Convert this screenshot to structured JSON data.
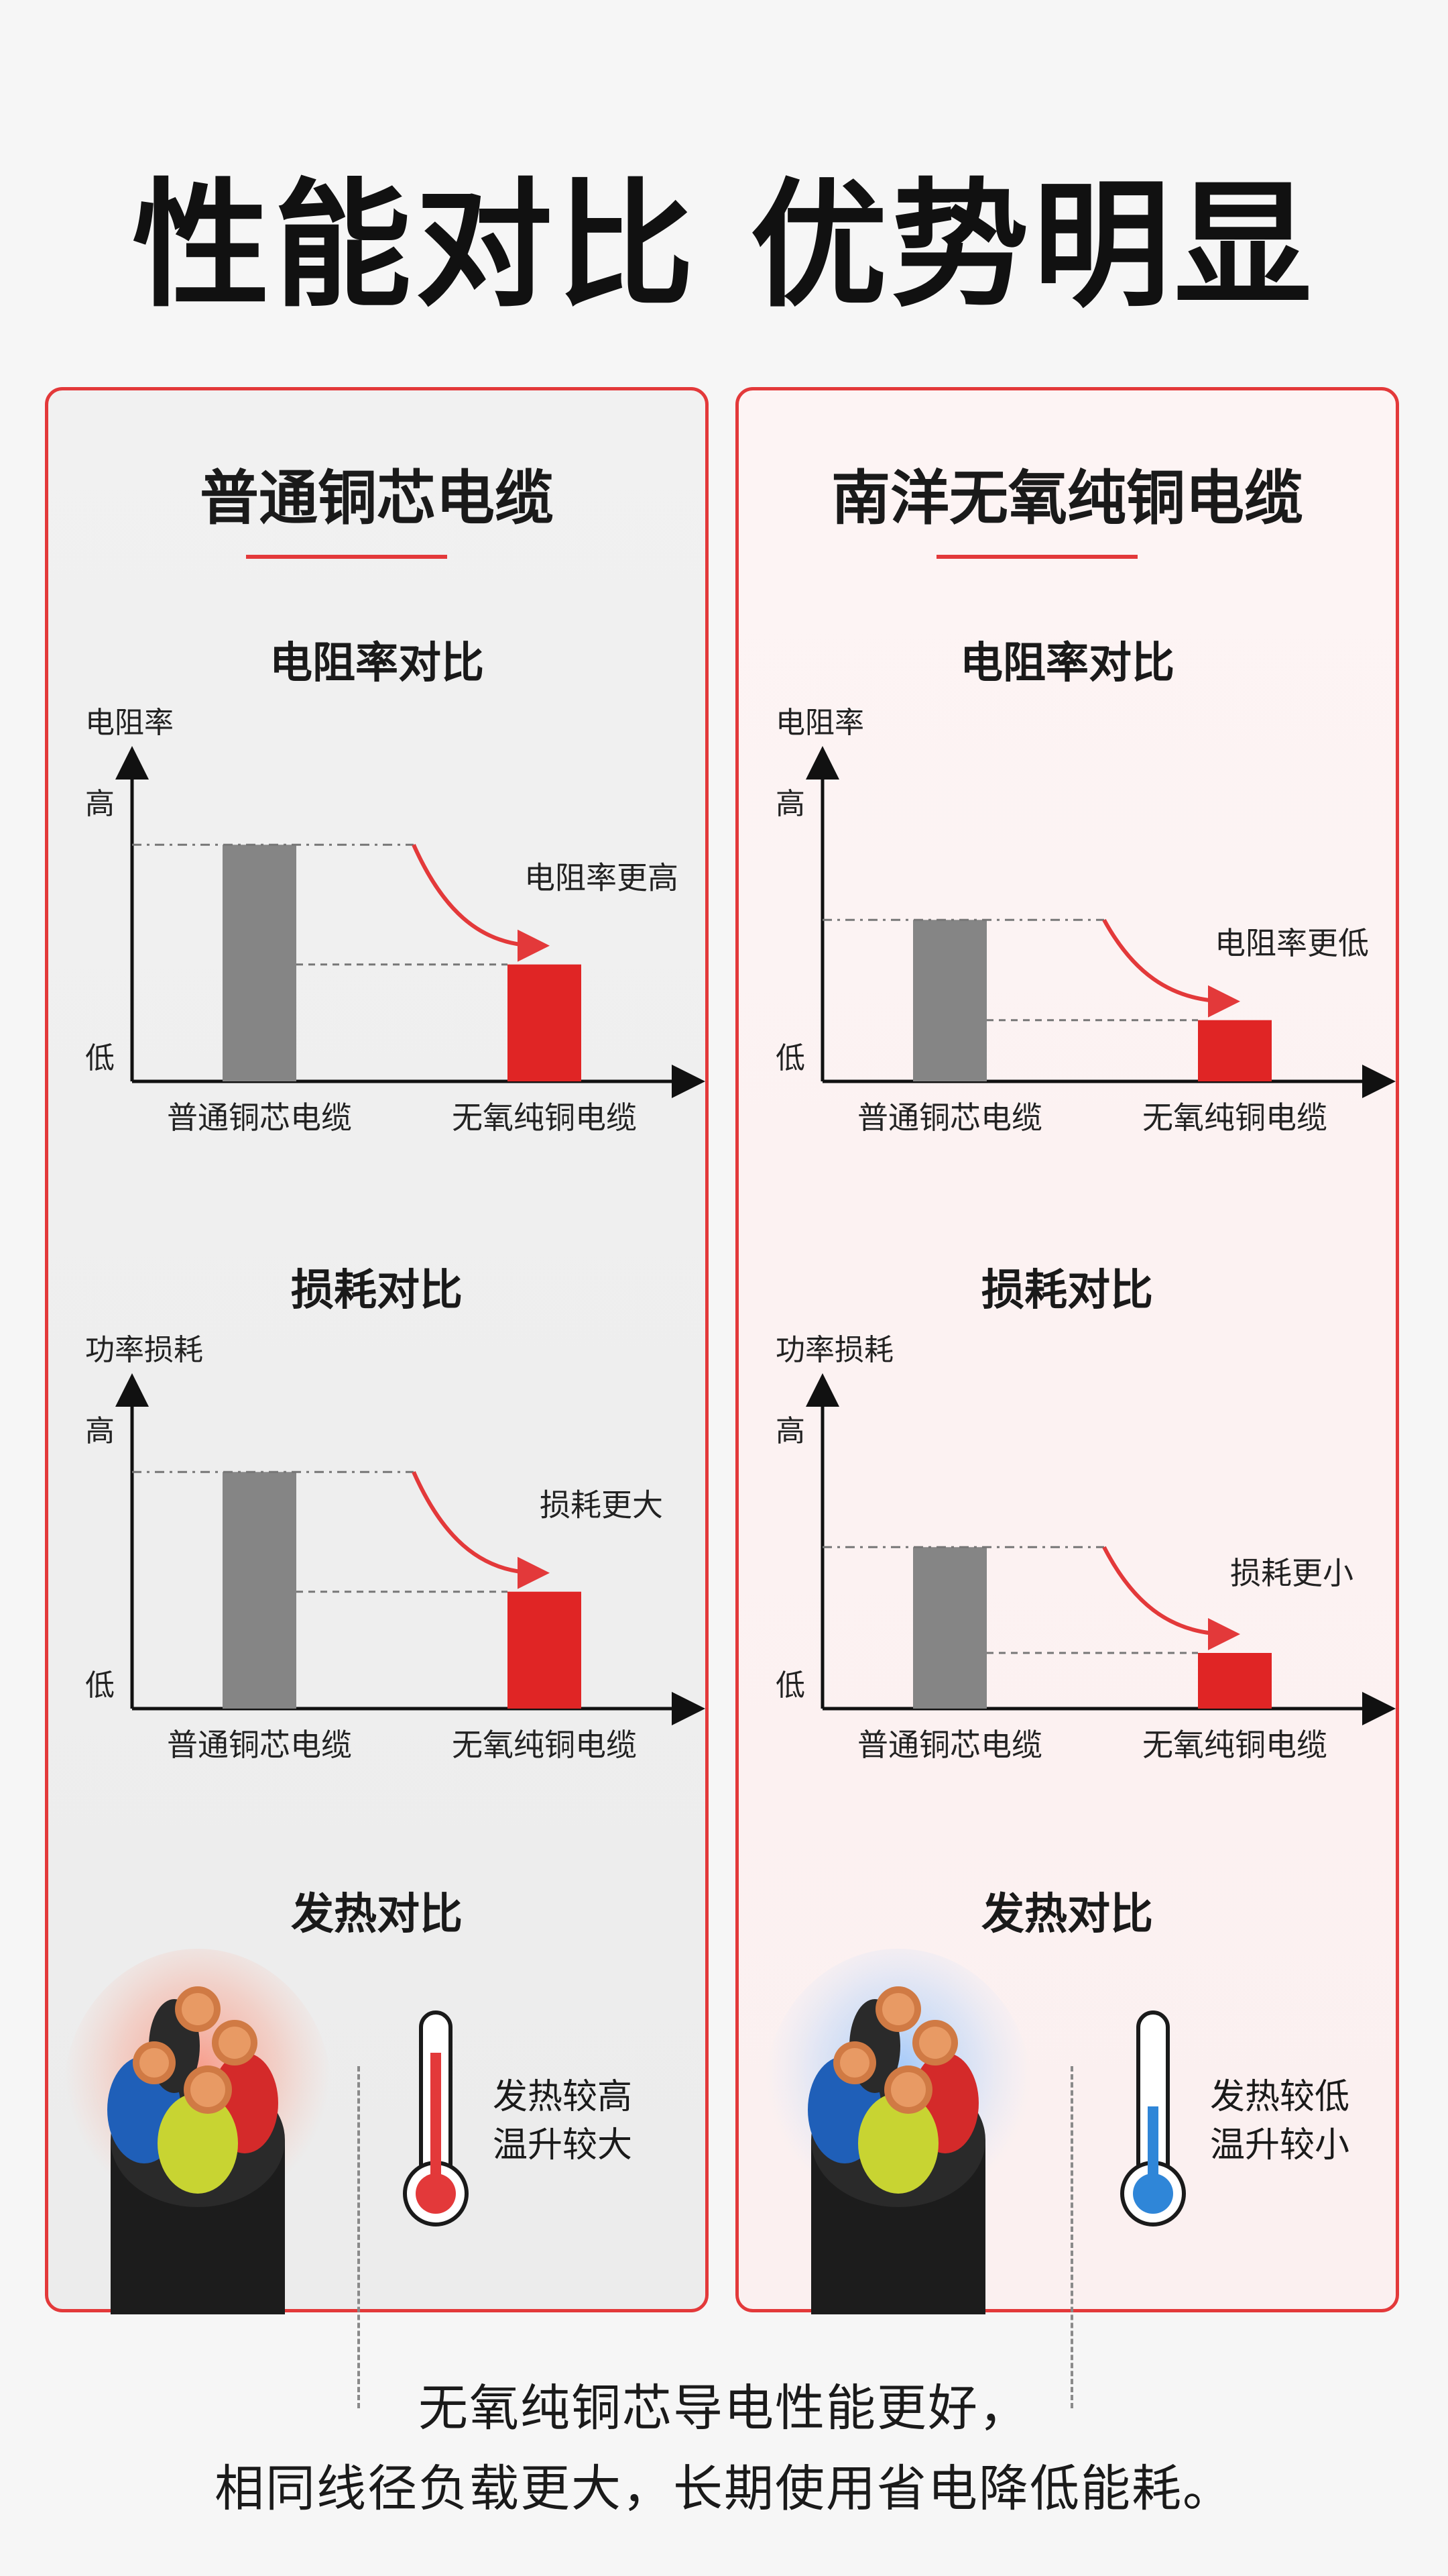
{
  "header": {
    "title": "性能对比 优势明显"
  },
  "panels": [
    {
      "title": "普通铜芯电缆"
    },
    {
      "title": "南洋无氧纯铜电缆"
    }
  ],
  "sections": {
    "resistivity": "电阻率对比",
    "loss": "损耗对比",
    "heat": "发热对比"
  },
  "axes": {
    "resistivity_ylabel": "电阻率",
    "loss_ylabel": "功率损耗",
    "high": "高",
    "low": "低"
  },
  "heat": {
    "left": {
      "line1": "发热较高",
      "line2": "温升较大",
      "color": "#e3393a"
    },
    "right": {
      "line1": "发热较低",
      "line2": "温升较小",
      "color": "#2f86d8"
    }
  },
  "footer": {
    "line1": "无氧纯铜芯导电性能更好，",
    "line2": "相同线径负载更大，长期使用省电降低能耗。"
  },
  "colors": {
    "accent": "#e3393a",
    "gray_bar": "#858585",
    "red_bar": "#e02525",
    "cool": "#2f86d8"
  },
  "chart_data": [
    {
      "type": "bar",
      "title": "电阻率对比",
      "panel": "普通铜芯电缆",
      "categories": [
        "普通铜芯电缆",
        "无氧纯铜电缆"
      ],
      "values": [
        0.85,
        0.42
      ],
      "ylabel": "电阻率",
      "ylim": [
        0,
        1
      ],
      "ytick_labels": [
        "低",
        "高"
      ],
      "annotation": "电阻率更高",
      "bar_colors": [
        "#858585",
        "#e02525"
      ]
    },
    {
      "type": "bar",
      "title": "损耗对比",
      "panel": "普通铜芯电缆",
      "categories": [
        "普通铜芯电缆",
        "无氧纯铜电缆"
      ],
      "values": [
        0.85,
        0.42
      ],
      "ylabel": "功率损耗",
      "ylim": [
        0,
        1
      ],
      "ytick_labels": [
        "低",
        "高"
      ],
      "annotation": "损耗更大",
      "bar_colors": [
        "#858585",
        "#e02525"
      ]
    },
    {
      "type": "bar",
      "title": "电阻率对比",
      "panel": "南洋无氧纯铜电缆",
      "categories": [
        "普通铜芯电缆",
        "无氧纯铜电缆"
      ],
      "values": [
        0.58,
        0.22
      ],
      "ylabel": "电阻率",
      "ylim": [
        0,
        1
      ],
      "ytick_labels": [
        "低",
        "高"
      ],
      "annotation": "电阻率更低",
      "bar_colors": [
        "#858585",
        "#e02525"
      ]
    },
    {
      "type": "bar",
      "title": "损耗对比",
      "panel": "南洋无氧纯铜电缆",
      "categories": [
        "普通铜芯电缆",
        "无氧纯铜电缆"
      ],
      "values": [
        0.58,
        0.2
      ],
      "ylabel": "功率损耗",
      "ylim": [
        0,
        1
      ],
      "ytick_labels": [
        "低",
        "高"
      ],
      "annotation": "损耗更小",
      "bar_colors": [
        "#858585",
        "#e02525"
      ]
    }
  ]
}
